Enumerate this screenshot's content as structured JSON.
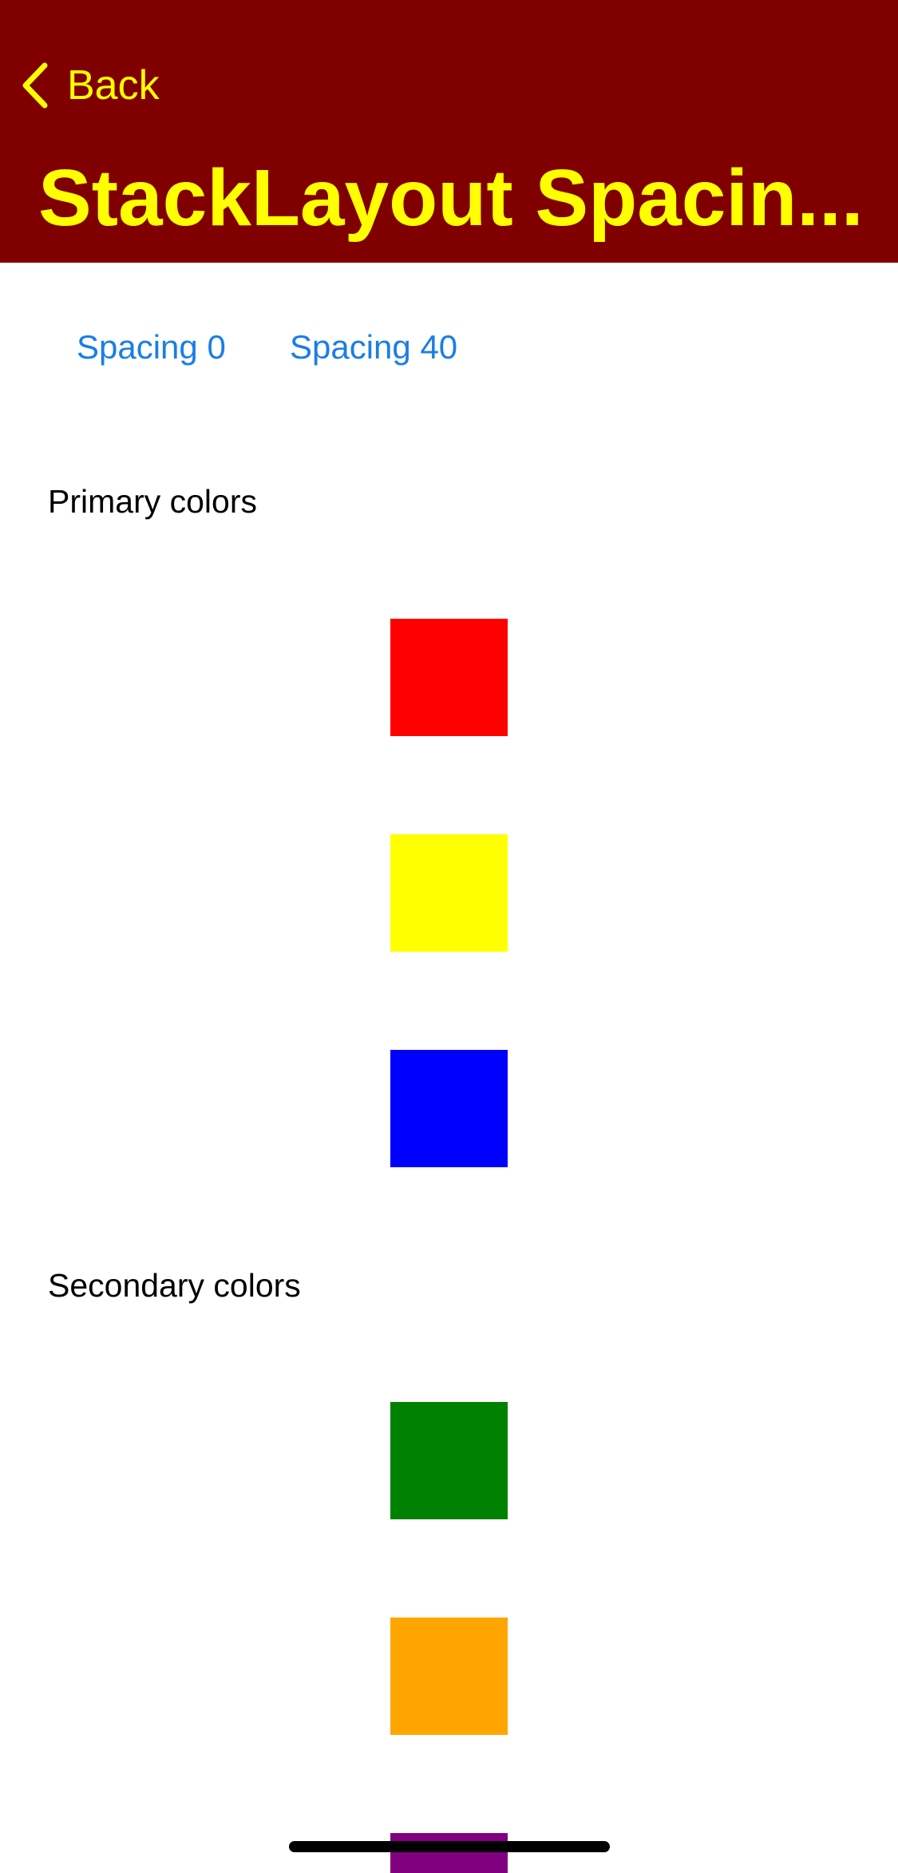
{
  "navbar": {
    "back_label": "Back",
    "title": "StackLayout Spacin...",
    "background": "#800000",
    "foreground": "#ffff00",
    "back_icon": "chevron-left-icon"
  },
  "toolbar": {
    "buttons": [
      {
        "label": "Spacing 0"
      },
      {
        "label": "Spacing 40"
      }
    ],
    "link_color": "#1a7ee6"
  },
  "sections": {
    "primary": {
      "label": "Primary colors",
      "colors": [
        "#ff0000",
        "#ffff00",
        "#0000ff"
      ]
    },
    "secondary": {
      "label": "Secondary colors",
      "colors": [
        "#008000",
        "#ffa500",
        "#800080"
      ]
    }
  }
}
